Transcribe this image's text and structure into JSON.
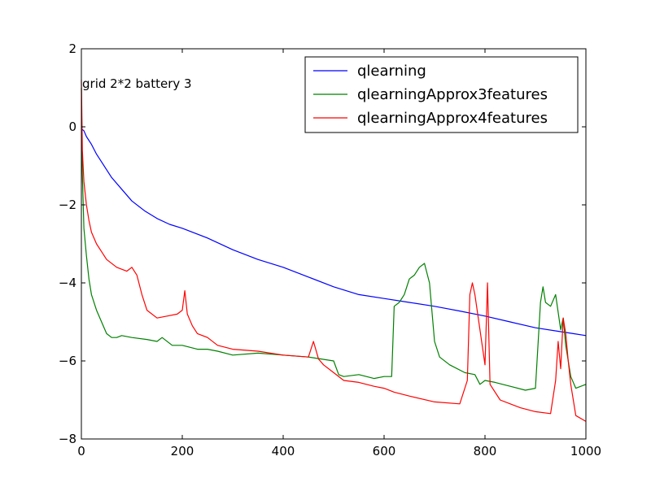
{
  "chart_data": {
    "type": "line",
    "xlim": [
      0,
      1000
    ],
    "ylim": [
      -8,
      2
    ],
    "x_ticks": [
      0,
      200,
      400,
      600,
      800,
      1000
    ],
    "y_ticks": [
      2,
      0,
      -2,
      -4,
      -6,
      -8
    ],
    "x_tick_labels": [
      "0",
      "200",
      "400",
      "600",
      "800",
      "1000"
    ],
    "y_tick_labels": [
      "2",
      "0",
      "−2",
      "−4",
      "−6",
      "−8"
    ],
    "grid": false,
    "legend_position": "top-right",
    "annotation": "grid 2*2 battery 3",
    "series": [
      {
        "name": "qlearning",
        "color": "#0000ff",
        "x": [
          0,
          5,
          10,
          20,
          30,
          40,
          50,
          60,
          80,
          100,
          125,
          150,
          175,
          200,
          250,
          300,
          350,
          400,
          450,
          500,
          550,
          600,
          650,
          700,
          750,
          800,
          850,
          900,
          950,
          975,
          1000
        ],
        "y": [
          -0.05,
          -0.1,
          -0.25,
          -0.45,
          -0.7,
          -0.9,
          -1.1,
          -1.3,
          -1.6,
          -1.9,
          -2.15,
          -2.35,
          -2.5,
          -2.6,
          -2.85,
          -3.15,
          -3.4,
          -3.6,
          -3.85,
          -4.1,
          -4.3,
          -4.4,
          -4.5,
          -4.6,
          -4.72,
          -4.85,
          -5.0,
          -5.15,
          -5.25,
          -5.3,
          -5.35
        ]
      },
      {
        "name": "qlearningApprox3features",
        "color": "#008000",
        "x": [
          0,
          2,
          5,
          10,
          15,
          20,
          30,
          40,
          50,
          60,
          70,
          80,
          100,
          130,
          150,
          160,
          180,
          200,
          230,
          250,
          270,
          300,
          350,
          400,
          450,
          500,
          510,
          520,
          550,
          580,
          600,
          615,
          620,
          630,
          640,
          650,
          660,
          670,
          680,
          690,
          700,
          710,
          730,
          760,
          780,
          790,
          800,
          820,
          850,
          880,
          900,
          910,
          915,
          920,
          930,
          940,
          950,
          955,
          960,
          970,
          980,
          1000
        ],
        "y": [
          1.0,
          -1.2,
          -2.6,
          -3.3,
          -3.9,
          -4.3,
          -4.7,
          -5.0,
          -5.3,
          -5.4,
          -5.4,
          -5.35,
          -5.4,
          -5.45,
          -5.5,
          -5.4,
          -5.6,
          -5.6,
          -5.7,
          -5.7,
          -5.75,
          -5.85,
          -5.8,
          -5.85,
          -5.9,
          -6.0,
          -6.35,
          -6.4,
          -6.35,
          -6.45,
          -6.4,
          -6.4,
          -4.6,
          -4.5,
          -4.3,
          -3.9,
          -3.8,
          -3.6,
          -3.5,
          -4.0,
          -5.5,
          -5.9,
          -6.1,
          -6.3,
          -6.35,
          -6.6,
          -6.5,
          -6.55,
          -6.65,
          -6.75,
          -6.7,
          -4.5,
          -4.1,
          -4.5,
          -4.6,
          -4.3,
          -5.2,
          -4.9,
          -5.6,
          -6.4,
          -6.7,
          -6.6
        ]
      },
      {
        "name": "qlearningApprox4features",
        "color": "#ff0000",
        "x": [
          0,
          2,
          5,
          10,
          15,
          20,
          30,
          40,
          50,
          70,
          90,
          100,
          110,
          120,
          130,
          150,
          170,
          190,
          200,
          205,
          210,
          220,
          230,
          250,
          270,
          300,
          350,
          400,
          450,
          460,
          470,
          480,
          500,
          520,
          550,
          580,
          600,
          620,
          650,
          700,
          750,
          765,
          770,
          775,
          780,
          790,
          800,
          805,
          810,
          830,
          850,
          870,
          900,
          930,
          940,
          945,
          950,
          955,
          960,
          965,
          970,
          980,
          1000
        ],
        "y": [
          1.2,
          -0.6,
          -1.4,
          -2.0,
          -2.4,
          -2.7,
          -3.0,
          -3.2,
          -3.4,
          -3.6,
          -3.7,
          -3.6,
          -3.8,
          -4.3,
          -4.7,
          -4.9,
          -4.85,
          -4.8,
          -4.7,
          -4.2,
          -4.8,
          -5.1,
          -5.3,
          -5.4,
          -5.6,
          -5.7,
          -5.75,
          -5.85,
          -5.9,
          -5.5,
          -5.95,
          -6.1,
          -6.3,
          -6.5,
          -6.55,
          -6.65,
          -6.7,
          -6.8,
          -6.9,
          -7.05,
          -7.1,
          -6.5,
          -4.3,
          -4.0,
          -4.3,
          -5.2,
          -6.1,
          -4.0,
          -6.6,
          -7.0,
          -7.1,
          -7.2,
          -7.3,
          -7.35,
          -6.5,
          -5.5,
          -6.2,
          -4.9,
          -5.3,
          -6.0,
          -6.6,
          -7.4,
          -7.55
        ]
      }
    ]
  }
}
